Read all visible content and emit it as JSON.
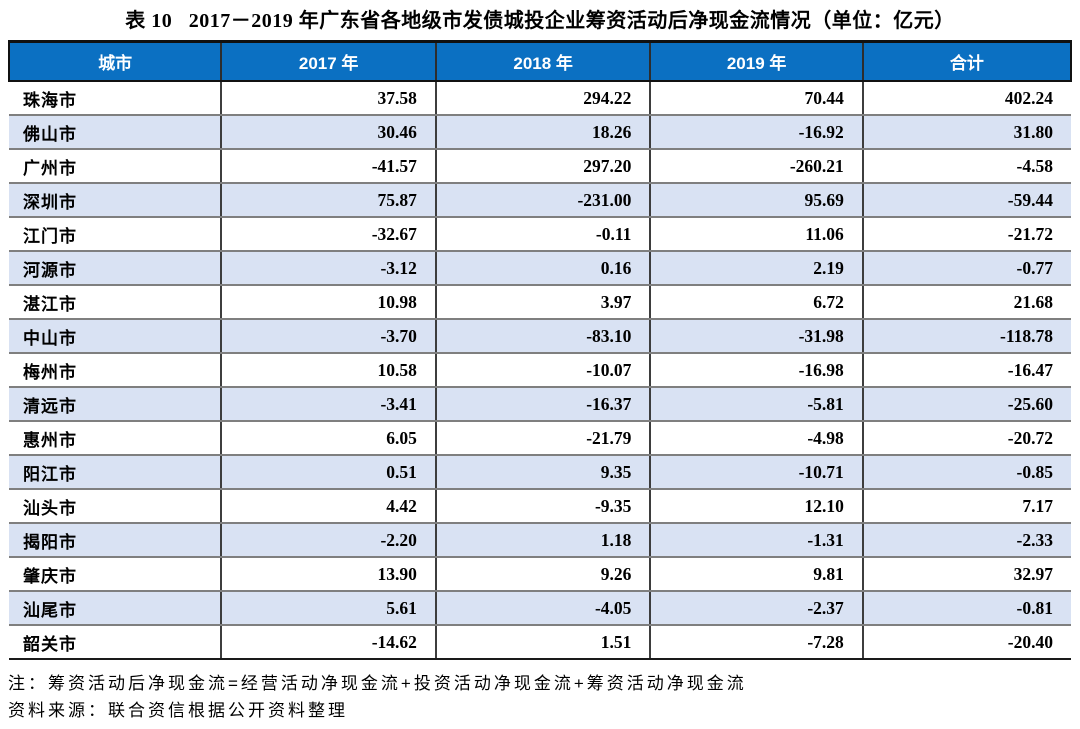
{
  "title": "表 10   2017－2019 年广东省各地级市发债城投企业筹资活动后净现金流情况（单位：亿元）",
  "table": {
    "columns": [
      "城市",
      "2017 年",
      "2018 年",
      "2019 年",
      "合计"
    ],
    "rows": [
      {
        "city": "珠海市",
        "values": [
          "37.58",
          "294.22",
          "70.44",
          "402.24"
        ]
      },
      {
        "city": "佛山市",
        "values": [
          "30.46",
          "18.26",
          "-16.92",
          "31.80"
        ]
      },
      {
        "city": "广州市",
        "values": [
          "-41.57",
          "297.20",
          "-260.21",
          "-4.58"
        ]
      },
      {
        "city": "深圳市",
        "values": [
          "75.87",
          "-231.00",
          "95.69",
          "-59.44"
        ]
      },
      {
        "city": "江门市",
        "values": [
          "-32.67",
          "-0.11",
          "11.06",
          "-21.72"
        ]
      },
      {
        "city": "河源市",
        "values": [
          "-3.12",
          "0.16",
          "2.19",
          "-0.77"
        ]
      },
      {
        "city": "湛江市",
        "values": [
          "10.98",
          "3.97",
          "6.72",
          "21.68"
        ]
      },
      {
        "city": "中山市",
        "values": [
          "-3.70",
          "-83.10",
          "-31.98",
          "-118.78"
        ]
      },
      {
        "city": "梅州市",
        "values": [
          "10.58",
          "-10.07",
          "-16.98",
          "-16.47"
        ]
      },
      {
        "city": "清远市",
        "values": [
          "-3.41",
          "-16.37",
          "-5.81",
          "-25.60"
        ]
      },
      {
        "city": "惠州市",
        "values": [
          "6.05",
          "-21.79",
          "-4.98",
          "-20.72"
        ]
      },
      {
        "city": "阳江市",
        "values": [
          "0.51",
          "9.35",
          "-10.71",
          "-0.85"
        ]
      },
      {
        "city": "汕头市",
        "values": [
          "4.42",
          "-9.35",
          "12.10",
          "7.17"
        ]
      },
      {
        "city": "揭阳市",
        "values": [
          "-2.20",
          "1.18",
          "-1.31",
          "-2.33"
        ]
      },
      {
        "city": "肇庆市",
        "values": [
          "13.90",
          "9.26",
          "9.81",
          "32.97"
        ]
      },
      {
        "city": "汕尾市",
        "values": [
          "5.61",
          "-4.05",
          "-2.37",
          "-0.81"
        ]
      },
      {
        "city": "韶关市",
        "values": [
          "-14.62",
          "1.51",
          "-7.28",
          "-20.40"
        ]
      }
    ]
  },
  "notes": {
    "formula": "注：筹资活动后净现金流=经营活动净现金流+投资活动净现金流+筹资活动净现金流",
    "source": "资料来源：联合资信根据公开资料整理"
  },
  "colors": {
    "header_bg": "#0B70C2",
    "header_text": "#FFFFFF",
    "stripe_bg": "#D9E2F3",
    "row_line": "#7F7F7F",
    "column_line": "#3D3D3D",
    "outer_line": "#111111"
  },
  "chart_data": {
    "type": "table",
    "title": "表 10 2017－2019 年广东省各地级市发债城投企业筹资活动后净现金流情况（单位：亿元）",
    "columns": [
      "城市",
      "2017 年",
      "2018 年",
      "2019 年",
      "合计"
    ],
    "rows": [
      [
        "珠海市",
        37.58,
        294.22,
        70.44,
        402.24
      ],
      [
        "佛山市",
        30.46,
        18.26,
        -16.92,
        31.8
      ],
      [
        "广州市",
        -41.57,
        297.2,
        -260.21,
        -4.58
      ],
      [
        "深圳市",
        75.87,
        -231.0,
        95.69,
        -59.44
      ],
      [
        "江门市",
        -32.67,
        -0.11,
        11.06,
        -21.72
      ],
      [
        "河源市",
        -3.12,
        0.16,
        2.19,
        -0.77
      ],
      [
        "湛江市",
        10.98,
        3.97,
        6.72,
        21.68
      ],
      [
        "中山市",
        -3.7,
        -83.1,
        -31.98,
        -118.78
      ],
      [
        "梅州市",
        10.58,
        -10.07,
        -16.98,
        -16.47
      ],
      [
        "清远市",
        -3.41,
        -16.37,
        -5.81,
        -25.6
      ],
      [
        "惠州市",
        6.05,
        -21.79,
        -4.98,
        -20.72
      ],
      [
        "阳江市",
        0.51,
        9.35,
        -10.71,
        -0.85
      ],
      [
        "汕头市",
        4.42,
        -9.35,
        12.1,
        7.17
      ],
      [
        "揭阳市",
        -2.2,
        1.18,
        -1.31,
        -2.33
      ],
      [
        "肇庆市",
        13.9,
        9.26,
        9.81,
        32.97
      ],
      [
        "汕尾市",
        5.61,
        -4.05,
        -2.37,
        -0.81
      ],
      [
        "韶关市",
        -14.62,
        1.51,
        -7.28,
        -20.4
      ]
    ]
  }
}
